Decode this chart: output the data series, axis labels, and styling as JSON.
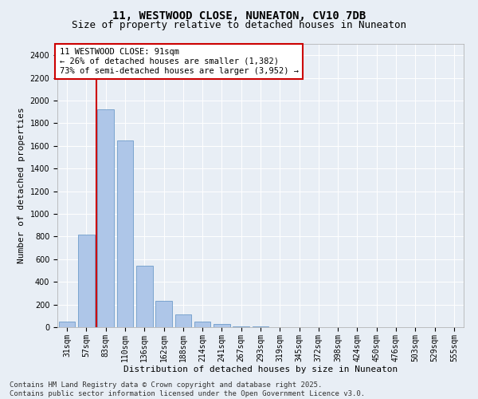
{
  "title_line1": "11, WESTWOOD CLOSE, NUNEATON, CV10 7DB",
  "title_line2": "Size of property relative to detached houses in Nuneaton",
  "xlabel": "Distribution of detached houses by size in Nuneaton",
  "ylabel": "Number of detached properties",
  "categories": [
    "31sqm",
    "57sqm",
    "83sqm",
    "110sqm",
    "136sqm",
    "162sqm",
    "188sqm",
    "214sqm",
    "241sqm",
    "267sqm",
    "293sqm",
    "319sqm",
    "345sqm",
    "372sqm",
    "398sqm",
    "424sqm",
    "450sqm",
    "476sqm",
    "503sqm",
    "529sqm",
    "555sqm"
  ],
  "values": [
    50,
    820,
    1920,
    1650,
    540,
    235,
    115,
    50,
    30,
    10,
    5,
    0,
    0,
    0,
    0,
    0,
    0,
    0,
    0,
    0,
    0
  ],
  "bar_color": "#aec6e8",
  "bar_edge_color": "#5a8fc2",
  "red_line_x": 2,
  "annotation_text": "11 WESTWOOD CLOSE: 91sqm\n← 26% of detached houses are smaller (1,382)\n73% of semi-detached houses are larger (3,952) →",
  "annotation_box_color": "#ffffff",
  "annotation_box_edge_color": "#cc0000",
  "ylim": [
    0,
    2500
  ],
  "yticks": [
    0,
    200,
    400,
    600,
    800,
    1000,
    1200,
    1400,
    1600,
    1800,
    2000,
    2200,
    2400
  ],
  "background_color": "#e8eef5",
  "grid_color": "#ffffff",
  "footer_line1": "Contains HM Land Registry data © Crown copyright and database right 2025.",
  "footer_line2": "Contains public sector information licensed under the Open Government Licence v3.0.",
  "title_fontsize": 10,
  "subtitle_fontsize": 9,
  "axis_label_fontsize": 8,
  "tick_fontsize": 7,
  "annotation_fontsize": 7.5,
  "footer_fontsize": 6.5
}
